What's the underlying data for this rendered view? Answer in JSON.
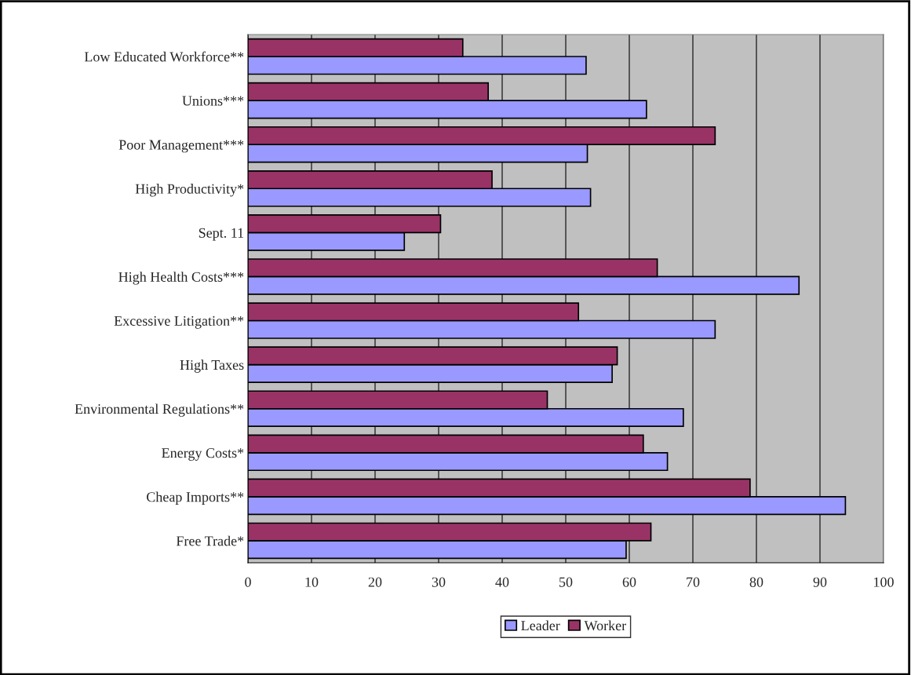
{
  "chart_data": {
    "type": "bar",
    "orientation": "horizontal",
    "categories": [
      "Low Educated Workforce**",
      "Unions***",
      "Poor Management***",
      "High Productivity*",
      "Sept. 11",
      "High Health Costs***",
      "Excessive Litigation**",
      "High Taxes",
      "Environmental Regulations**",
      "Energy Costs*",
      "Cheap Imports**",
      "Free Trade*"
    ],
    "series": [
      {
        "name": "Leader",
        "color": "#9999ff",
        "values": [
          53.2,
          62.7,
          53.4,
          53.9,
          24.6,
          86.7,
          73.5,
          57.3,
          68.5,
          66.0,
          94.0,
          59.5
        ]
      },
      {
        "name": "Worker",
        "color": "#993366",
        "values": [
          33.8,
          37.8,
          73.5,
          38.4,
          30.3,
          64.4,
          52.0,
          58.1,
          47.1,
          62.2,
          79.0,
          63.4
        ]
      }
    ],
    "xlim": [
      0,
      100
    ],
    "xticks": [
      0,
      10,
      20,
      30,
      40,
      50,
      60,
      70,
      80,
      90,
      100
    ],
    "grid": "x",
    "legend": "bottom"
  }
}
